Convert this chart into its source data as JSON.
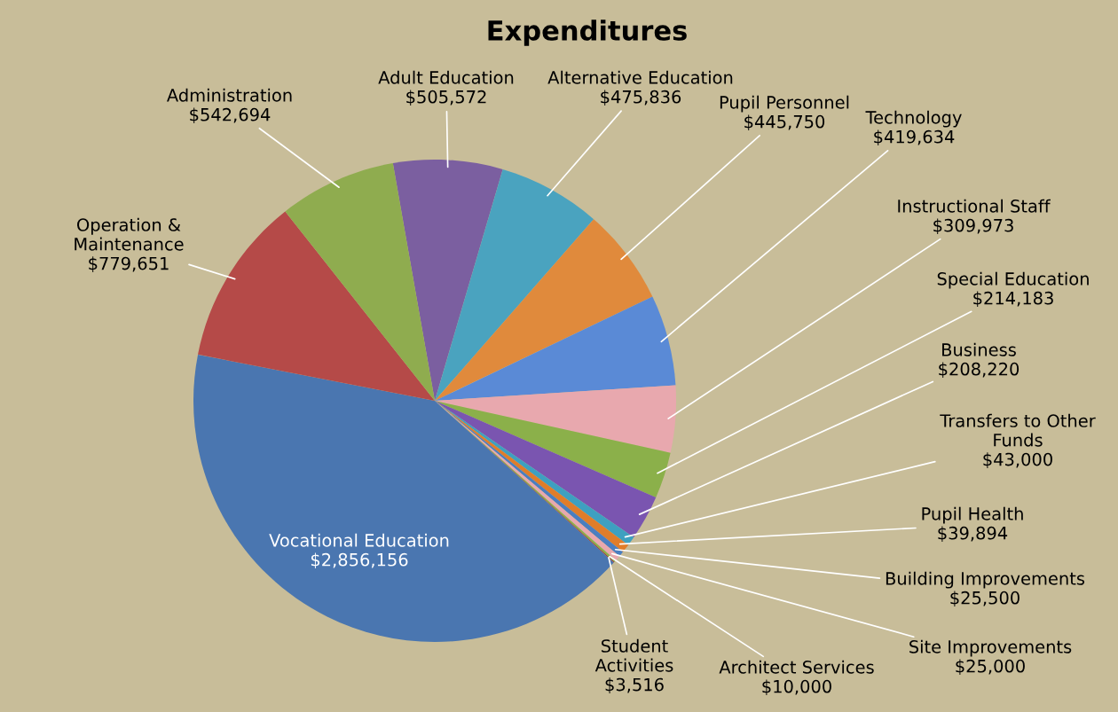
{
  "chart_data": {
    "type": "pie",
    "title": "Expenditures",
    "categories": [
      "Adult Education",
      "Alternative Education",
      "Pupil Personnel",
      "Technology",
      "Instructional Staff",
      "Special Education",
      "Business",
      "Transfers to Other\nFunds",
      "Pupil Health",
      "Building Improvements",
      "Site Improvements",
      "Architect Services",
      "Student\nActivities",
      "Vocational Education",
      "Operation &\nMaintenance",
      "Administration"
    ],
    "values": [
      505572,
      475836,
      445750,
      419634,
      309973,
      214183,
      208220,
      43000,
      39894,
      25500,
      25000,
      10000,
      3516,
      2856156,
      779651,
      542694
    ],
    "value_labels": [
      "$505,572",
      "$475,836",
      "$445,750",
      "$419,634",
      "$309,973",
      "$214,183",
      "$208,220",
      "$43,000",
      "$39,894",
      "$25,500",
      "$25,000",
      "$10,000",
      "$3,516",
      "$2,856,156",
      "$779,651",
      "$542,694"
    ],
    "colors": [
      "#7b5fa0",
      "#4aa3bf",
      "#e08a3c",
      "#5a8ad6",
      "#e8a8ae",
      "#8bb04a",
      "#7a55b0",
      "#3ea0c0",
      "#e07d2a",
      "#4a7ec0",
      "#e8a8ae",
      "#8bb04a",
      "#a03030",
      "#4a76b0",
      "#b54a48",
      "#8fac4f"
    ]
  }
}
